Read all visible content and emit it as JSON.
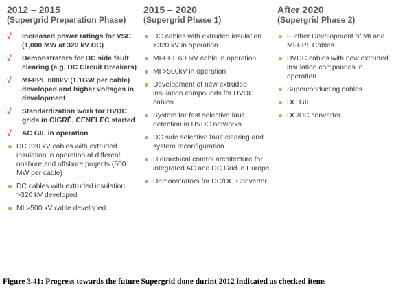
{
  "columns": [
    {
      "title": "2012 – 2015",
      "subtitle": "(Supergrid Preparation Phase)",
      "items": [
        {
          "checked": true,
          "text": "Increased power ratings for VSC (1,000 MW at 320 kV DC)"
        },
        {
          "checked": true,
          "text": "Demonstrators for DC side fault clearing (e.g. DC Circuit Breakers)"
        },
        {
          "checked": true,
          "text": "MI-PPL 600kV (1.1GW per cable) developed and higher voltages in development"
        },
        {
          "checked": true,
          "text": "Standardization work for HVDC grids in CIGRÉ, CENELEC started"
        },
        {
          "checked": true,
          "text": "AC GIL in operation"
        },
        {
          "checked": false,
          "text": "DC 320 kV cables with extruded insulation in operation at different onshore and offshore projects (500 MW per cable)"
        },
        {
          "checked": false,
          "text": "DC cables with extruded insulation  >320 kV developed"
        },
        {
          "checked": false,
          "text": "MI >500 kV cable developed"
        }
      ]
    },
    {
      "title": "2015 – 2020",
      "subtitle": "(Supergrid Phase 1)",
      "items": [
        {
          "checked": false,
          "text": "DC cables with extruded insulation  >320 kV in operation"
        },
        {
          "checked": false,
          "text": "MI-PPL 600kV cable in operation"
        },
        {
          "checked": false,
          "text": "MI >500kV in operation"
        },
        {
          "checked": false,
          "text": "Development of new extruded insulation compounds for HVDC cables"
        },
        {
          "checked": false,
          "text": "System for fast selective fault detection in HVDC networks"
        },
        {
          "checked": false,
          "text": "DC side selective fault clearing and system reconfiguration"
        },
        {
          "checked": false,
          "text": "Hierarchical control architecture for integrated AC and DC Grid in Europe"
        },
        {
          "checked": false,
          "text": "Demonstrators for DC/DC Converter"
        }
      ]
    },
    {
      "title": "After 2020",
      "subtitle": "(Supergrid Phase 2)",
      "items": [
        {
          "checked": false,
          "text": "Further Development  of MI and MI-PPL Cables"
        },
        {
          "checked": false,
          "text": "HVDC cables with new extruded insulation compounds in operation"
        },
        {
          "checked": false,
          "text": "Superconducting cables"
        },
        {
          "checked": false,
          "text": "DC GIL"
        },
        {
          "checked": false,
          "text": "DC/DC converter"
        }
      ]
    }
  ],
  "check_symbol": "√",
  "colors": {
    "check": "#e03a2f",
    "bullet": "#9bbb59",
    "heading": "#595959"
  },
  "caption": "Figure 3.41:  Progress towards the future Supergrid done durint 2012 indicated as checked items"
}
